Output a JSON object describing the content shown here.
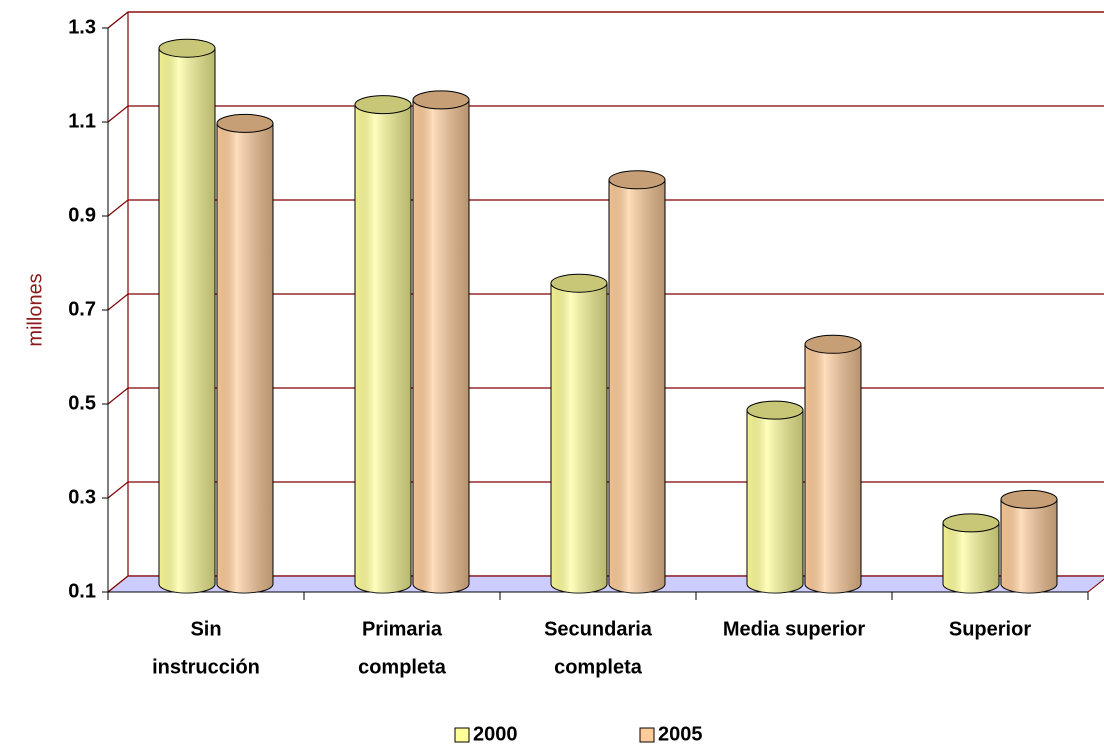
{
  "chart_data": {
    "type": "bar3d",
    "y_label": "millones",
    "categories": [
      [
        "Sin",
        "instrucción"
      ],
      [
        "Primaria",
        "completa"
      ],
      [
        "Secundaria",
        "completa"
      ],
      [
        "Media superior"
      ],
      [
        "Superior"
      ]
    ],
    "series": [
      {
        "name": "2000",
        "color": "#ffff99",
        "values": [
          1.24,
          1.12,
          0.74,
          0.47,
          0.23
        ]
      },
      {
        "name": "2005",
        "color": "#ffcc99",
        "values": [
          1.08,
          1.13,
          0.96,
          0.61,
          0.28
        ]
      }
    ],
    "ylim": [
      0.1,
      1.3
    ],
    "yticks": [
      0.1,
      0.3,
      0.5,
      0.7,
      0.9,
      1.1,
      1.3
    ],
    "grid": true,
    "legend": "bottom"
  }
}
